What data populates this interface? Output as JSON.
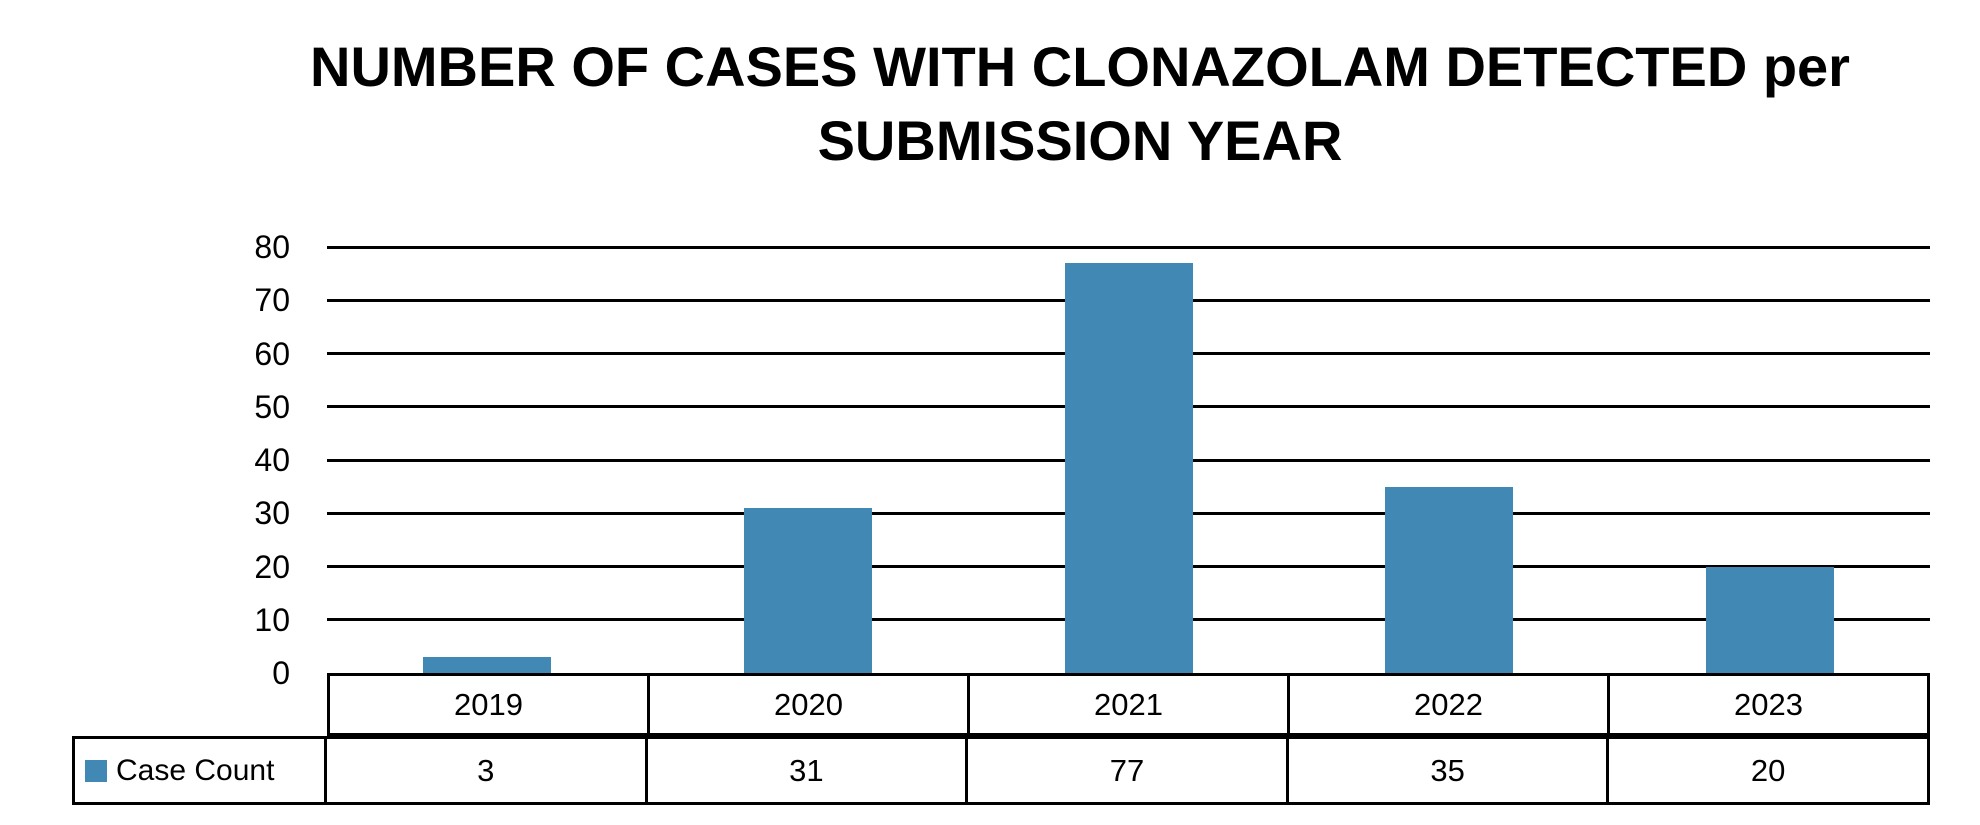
{
  "chart_data": {
    "type": "bar",
    "title": "NUMBER OF CASES WITH CLONAZOLAM DETECTED per SUBMISSION YEAR",
    "title_lines": [
      "NUMBER OF CASES WITH CLONAZOLAM DETECTED per",
      "SUBMISSION YEAR"
    ],
    "categories": [
      "2019",
      "2020",
      "2021",
      "2022",
      "2023"
    ],
    "series": [
      {
        "name": "Case Count",
        "values": [
          3,
          31,
          77,
          35,
          20
        ]
      }
    ],
    "xlabel": "",
    "ylabel": "",
    "ylim": [
      0,
      80
    ],
    "y_ticks": [
      80,
      70,
      60,
      50,
      40,
      30,
      20,
      10,
      0
    ],
    "grid": true,
    "legend_position": "data-table-left",
    "data_table_shown": true,
    "colors": {
      "bar": "#4288B4",
      "gridline": "#000000",
      "border": "#000000",
      "text": "#000000",
      "background": "#FFFFFF"
    }
  }
}
